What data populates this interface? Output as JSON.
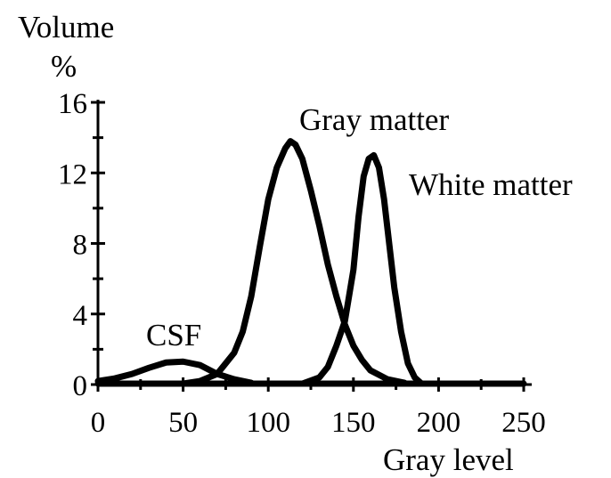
{
  "chart_data": {
    "type": "line",
    "xlabel": "Gray level",
    "ylabel_line1": "Volume",
    "ylabel_line2": "%",
    "xlim": [
      0,
      250
    ],
    "ylim": [
      0,
      16
    ],
    "x_ticks": [
      0,
      50,
      100,
      150,
      200,
      250
    ],
    "y_ticks": [
      0,
      4,
      8,
      12,
      16
    ],
    "grid": false,
    "series": [
      {
        "name": "CSF",
        "x": [
          0,
          10,
          20,
          30,
          40,
          50,
          60,
          70,
          80,
          90
        ],
        "y": [
          0.2,
          0.35,
          0.6,
          0.95,
          1.25,
          1.3,
          1.1,
          0.6,
          0.3,
          0.1
        ]
      },
      {
        "name": "Gray matter",
        "x": [
          50,
          60,
          70,
          80,
          85,
          90,
          95,
          100,
          105,
          110,
          113,
          116,
          120,
          125,
          130,
          135,
          140,
          145,
          150,
          155,
          160,
          170,
          180
        ],
        "y": [
          0.05,
          0.2,
          0.6,
          1.8,
          3.0,
          5.0,
          7.8,
          10.5,
          12.3,
          13.4,
          13.8,
          13.6,
          12.8,
          11.0,
          9.0,
          6.8,
          5.0,
          3.4,
          2.2,
          1.4,
          0.8,
          0.3,
          0.1
        ]
      },
      {
        "name": "White matter",
        "x": [
          120,
          130,
          135,
          140,
          145,
          150,
          153,
          156,
          159,
          162,
          165,
          168,
          171,
          174,
          178,
          182,
          186,
          190
        ],
        "y": [
          0.05,
          0.4,
          1.0,
          2.2,
          3.6,
          6.5,
          9.5,
          11.8,
          12.8,
          13.0,
          12.3,
          10.5,
          8.0,
          5.5,
          3.0,
          1.2,
          0.4,
          0.05
        ]
      }
    ],
    "baseline_x": [
      0,
      250
    ],
    "baseline_y": [
      0,
      0
    ]
  }
}
